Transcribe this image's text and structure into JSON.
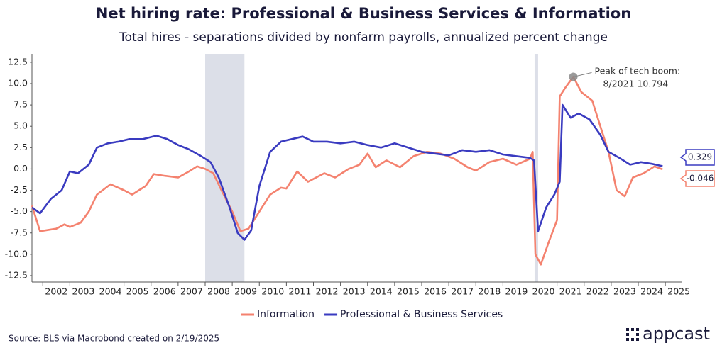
{
  "chart_data": {
    "type": "line",
    "title": "Net hiring rate: Professional & Business Services & Information",
    "subtitle": "Total hires - separations divided by nonfarm payrolls, annualized percent change",
    "source": "Source: BLS via Macrobond created on 2/19/2025",
    "logo": "appcast",
    "annotation": [
      "Peak of tech boom:",
      "8/2021 10.794"
    ],
    "xlim": [
      2001.6,
      2025.6
    ],
    "xticks": [
      2002,
      2003,
      2004,
      2005,
      2006,
      2007,
      2008,
      2009,
      2010,
      2011,
      2012,
      2013,
      2014,
      2015,
      2016,
      2017,
      2018,
      2019,
      2020,
      2021,
      2022,
      2023,
      2024,
      2025
    ],
    "ylim": [
      -13.25,
      14.65
    ],
    "yticks": [
      {
        "value": 12.5,
        "label": "12.5"
      },
      {
        "value": 10,
        "label": "10.0"
      },
      7.5,
      {
        "value": 5,
        "label": "5.0"
      },
      2.5,
      {
        "value": 0,
        "label": "0.0"
      },
      -2.5,
      {
        "value": -5,
        "label": "-5.0"
      },
      -7.5,
      {
        "value": -10,
        "label": "-10.0"
      },
      -12.5
    ],
    "grid": false,
    "legend": "bottom",
    "shaded_periods": [
      [
        2008.0,
        2009.45
      ],
      [
        2020.17,
        2020.3
      ]
    ],
    "series": [
      {
        "name": "Information",
        "color": "#f4826f",
        "x": [
          2001.6,
          2001.9,
          2002.5,
          2002.8,
          2003.0,
          2003.4,
          2003.7,
          2004.0,
          2004.5,
          2005.0,
          2005.3,
          2005.8,
          2006.1,
          2006.5,
          2007.0,
          2007.4,
          2007.7,
          2008.0,
          2008.3,
          2008.6,
          2009.0,
          2009.3,
          2009.6,
          2010.0,
          2010.4,
          2010.8,
          2011.0,
          2011.4,
          2011.8,
          2012.4,
          2012.8,
          2013.3,
          2013.7,
          2014.0,
          2014.3,
          2014.7,
          2015.2,
          2015.7,
          2016.2,
          2016.7,
          2017.2,
          2017.7,
          2018.0,
          2018.5,
          2019.0,
          2019.5,
          2020.0,
          2020.1,
          2020.2,
          2020.4,
          2020.7,
          2021.0,
          2021.1,
          2021.3,
          2021.6,
          2021.9,
          2022.3,
          2022.6,
          2022.9,
          2023.2,
          2023.5,
          2023.8,
          2024.2,
          2024.6,
          2024.9
        ],
        "values": [
          -4.3,
          -7.3,
          -7.0,
          -6.5,
          -6.8,
          -6.3,
          -5.0,
          -3.0,
          -1.8,
          -2.5,
          -3.0,
          -2.0,
          -0.6,
          -0.8,
          -1.0,
          -0.3,
          0.3,
          0,
          -0.5,
          -2.5,
          -5.0,
          -7.3,
          -7.0,
          -5.0,
          -3.0,
          -2.2,
          -2.3,
          -0.3,
          -1.5,
          -0.5,
          -1.0,
          0,
          0.5,
          1.8,
          0.2,
          1.0,
          0.2,
          1.5,
          2.0,
          1.8,
          1.2,
          0.2,
          -0.2,
          0.8,
          1.2,
          0.5,
          1.2,
          2.0,
          -10.0,
          -11.2,
          -8.5,
          -6.0,
          8.5,
          9.5,
          10.794,
          9.0,
          8.0,
          5.0,
          2.0,
          -2.5,
          -3.2,
          -1.0,
          -0.5,
          0.3,
          -0.046
        ]
      },
      {
        "name": "Professional & Business Services",
        "color": "#3a3bc0",
        "x": [
          2001.6,
          2001.9,
          2002.3,
          2002.7,
          2003.0,
          2003.3,
          2003.7,
          2004.0,
          2004.4,
          2004.8,
          2005.2,
          2005.7,
          2006.2,
          2006.6,
          2007.0,
          2007.4,
          2007.8,
          2008.2,
          2008.5,
          2008.9,
          2009.2,
          2009.45,
          2009.7,
          2010.0,
          2010.4,
          2010.8,
          2011.2,
          2011.6,
          2012.0,
          2012.5,
          2013.0,
          2013.5,
          2014.0,
          2014.5,
          2015.0,
          2015.5,
          2016.0,
          2016.5,
          2017.0,
          2017.5,
          2018.0,
          2018.5,
          2019.0,
          2019.5,
          2020.0,
          2020.15,
          2020.3,
          2020.6,
          2020.9,
          2021.1,
          2021.2,
          2021.5,
          2021.8,
          2022.2,
          2022.6,
          2022.9,
          2023.3,
          2023.7,
          2024.1,
          2024.5,
          2024.9
        ],
        "values": [
          -4.5,
          -5.2,
          -3.5,
          -2.5,
          -0.3,
          -0.5,
          0.5,
          2.5,
          3.0,
          3.2,
          3.5,
          3.5,
          3.9,
          3.5,
          2.8,
          2.3,
          1.6,
          0.8,
          -1.0,
          -4.5,
          -7.5,
          -8.3,
          -7.2,
          -2.0,
          2.0,
          3.2,
          3.5,
          3.8,
          3.2,
          3.2,
          3.0,
          3.2,
          2.8,
          2.5,
          3.0,
          2.5,
          2.0,
          1.8,
          1.6,
          2.2,
          2.0,
          2.2,
          1.7,
          1.5,
          1.3,
          1.0,
          -7.3,
          -4.5,
          -3.0,
          -1.5,
          7.5,
          6.0,
          6.5,
          5.8,
          4.0,
          2.0,
          1.3,
          0.5,
          0.8,
          0.6,
          0.329
        ]
      }
    ]
  }
}
